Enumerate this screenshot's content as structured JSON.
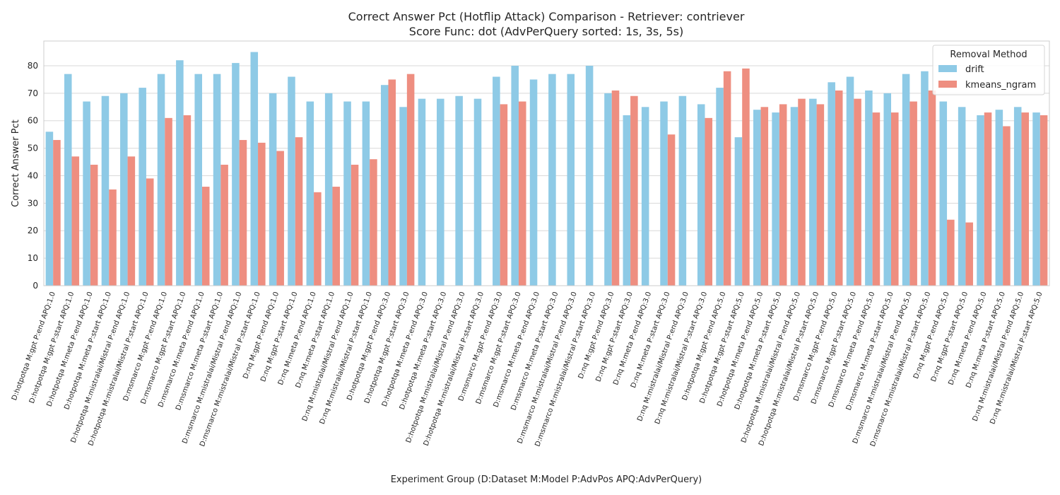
{
  "chart_data": {
    "type": "bar",
    "title": "Correct Answer Pct (Hotflip Attack) Comparison - Retriever: contriever",
    "subtitle": "Score Func: dot (AdvPerQuery sorted: 1s, 3s, 5s)",
    "xlabel": "Experiment Group (D:Dataset M:Model P:AdvPos APQ:AdvPerQuery)",
    "ylabel": "Correct Answer Pct",
    "ylim": [
      0,
      89
    ],
    "yticks": [
      0,
      10,
      20,
      30,
      40,
      50,
      60,
      70,
      80
    ],
    "grid": true,
    "legend": {
      "title": "Removal Method",
      "placement": "top-right"
    },
    "categories": [
      "D:hotpotqa M:gpt P:end APQ:1.0",
      "D:hotpotqa M:gpt P:start APQ:1.0",
      "D:hotpotqa M:meta P:end APQ:1.0",
      "D:hotpotqa M:meta P:start APQ:1.0",
      "D:hotpotqa M:mistralai/Mistral P:end APQ:1.0",
      "D:hotpotqa M:mistralai/Mistral P:start APQ:1.0",
      "D:msmarco M:gpt P:end APQ:1.0",
      "D:msmarco M:gpt P:start APQ:1.0",
      "D:msmarco M:meta P:end APQ:1.0",
      "D:msmarco M:meta P:start APQ:1.0",
      "D:msmarco M:mistralai/Mistral P:end APQ:1.0",
      "D:msmarco M:mistralai/Mistral P:start APQ:1.0",
      "D:nq M:gpt P:end APQ:1.0",
      "D:nq M:gpt P:start APQ:1.0",
      "D:nq M:meta P:end APQ:1.0",
      "D:nq M:meta P:start APQ:1.0",
      "D:nq M:mistralai/Mistral P:end APQ:1.0",
      "D:nq M:mistralai/Mistral P:start APQ:1.0",
      "D:hotpotqa M:gpt P:end APQ:3.0",
      "D:hotpotqa M:gpt P:start APQ:3.0",
      "D:hotpotqa M:meta P:end APQ:3.0",
      "D:hotpotqa M:meta P:start APQ:3.0",
      "D:hotpotqa M:mistralai/Mistral P:end APQ:3.0",
      "D:hotpotqa M:mistralai/Mistral P:start APQ:3.0",
      "D:msmarco M:gpt P:end APQ:3.0",
      "D:msmarco M:gpt P:start APQ:3.0",
      "D:msmarco M:meta P:end APQ:3.0",
      "D:msmarco M:meta P:start APQ:3.0",
      "D:msmarco M:mistralai/Mistral P:end APQ:3.0",
      "D:msmarco M:mistralai/Mistral P:start APQ:3.0",
      "D:nq M:gpt P:end APQ:3.0",
      "D:nq M:gpt P:start APQ:3.0",
      "D:nq M:meta P:end APQ:3.0",
      "D:nq M:meta P:start APQ:3.0",
      "D:nq M:mistralai/Mistral P:end APQ:3.0",
      "D:nq M:mistralai/Mistral P:start APQ:3.0",
      "D:hotpotqa M:gpt P:end APQ:5.0",
      "D:hotpotqa M:gpt P:start APQ:5.0",
      "D:hotpotqa M:meta P:end APQ:5.0",
      "D:hotpotqa M:meta P:start APQ:5.0",
      "D:hotpotqa M:mistralai/Mistral P:end APQ:5.0",
      "D:hotpotqa M:mistralai/Mistral P:start APQ:5.0",
      "D:msmarco M:gpt P:end APQ:5.0",
      "D:msmarco M:gpt P:start APQ:5.0",
      "D:msmarco M:meta P:end APQ:5.0",
      "D:msmarco M:meta P:start APQ:5.0",
      "D:msmarco M:mistralai/Mistral P:end APQ:5.0",
      "D:msmarco M:mistralai/Mistral P:start APQ:5.0",
      "D:nq M:gpt P:end APQ:5.0",
      "D:nq M:gpt P:start APQ:5.0",
      "D:nq M:meta P:end APQ:5.0",
      "D:nq M:meta P:start APQ:5.0",
      "D:nq M:mistralai/Mistral P:end APQ:5.0",
      "D:nq M:mistralai/Mistral P:start APQ:5.0"
    ],
    "series": [
      {
        "name": "drift",
        "color": "#8ecae6",
        "values": [
          56,
          77,
          67,
          69,
          70,
          72,
          77,
          82,
          77,
          77,
          81,
          85,
          70,
          76,
          67,
          70,
          67,
          67,
          73,
          65,
          68,
          68,
          69,
          68,
          76,
          80,
          75,
          77,
          77,
          80,
          70,
          62,
          65,
          67,
          69,
          66,
          72,
          54,
          64,
          63,
          65,
          68,
          74,
          76,
          71,
          70,
          77,
          78,
          67,
          65,
          62,
          64,
          65,
          63
        ]
      },
      {
        "name": "kmeans_ngram",
        "color": "#ee8e80",
        "values": [
          53,
          47,
          44,
          35,
          47,
          39,
          61,
          62,
          36,
          44,
          53,
          52,
          49,
          54,
          34,
          36,
          44,
          46,
          75,
          77,
          null,
          null,
          null,
          null,
          66,
          67,
          null,
          null,
          null,
          null,
          71,
          69,
          null,
          55,
          null,
          61,
          78,
          79,
          65,
          66,
          68,
          66,
          71,
          68,
          63,
          63,
          67,
          71,
          24,
          23,
          63,
          58,
          63,
          62
        ]
      }
    ]
  }
}
